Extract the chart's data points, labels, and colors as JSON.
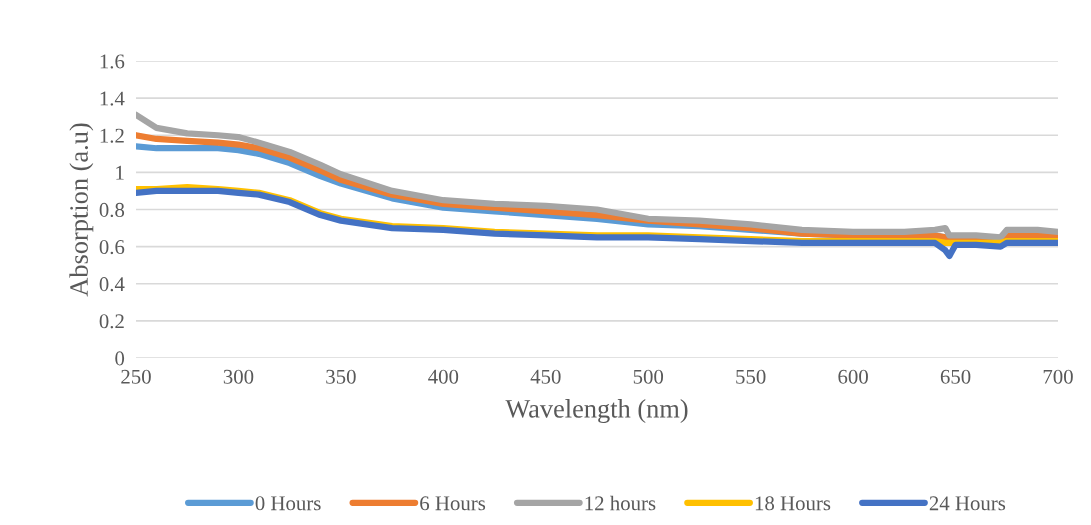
{
  "chart_data": {
    "type": "line",
    "xlabel": "Wavelength (nm)",
    "ylabel": "Absorption (a.u)",
    "x": [
      250,
      260,
      275,
      290,
      300,
      310,
      325,
      340,
      350,
      375,
      400,
      425,
      450,
      475,
      500,
      525,
      550,
      575,
      600,
      625,
      640,
      645,
      647,
      650,
      660,
      672,
      675,
      690,
      700
    ],
    "series": [
      {
        "name": "0 Hours",
        "color": "#5b9bd5",
        "values": [
          1.14,
          1.13,
          1.13,
          1.13,
          1.12,
          1.1,
          1.05,
          0.98,
          0.94,
          0.86,
          0.81,
          0.79,
          0.77,
          0.75,
          0.72,
          0.71,
          0.69,
          0.67,
          0.66,
          0.66,
          0.66,
          0.65,
          0.64,
          0.64,
          0.64,
          0.64,
          0.65,
          0.65,
          0.65
        ]
      },
      {
        "name": "6 Hours",
        "color": "#ed7d31",
        "values": [
          1.2,
          1.18,
          1.17,
          1.16,
          1.15,
          1.13,
          1.08,
          1.01,
          0.96,
          0.88,
          0.83,
          0.81,
          0.79,
          0.77,
          0.74,
          0.72,
          0.7,
          0.67,
          0.66,
          0.66,
          0.66,
          0.65,
          0.64,
          0.64,
          0.64,
          0.64,
          0.66,
          0.66,
          0.66
        ]
      },
      {
        "name": "12 hours",
        "color": "#a5a5a5",
        "values": [
          1.31,
          1.24,
          1.21,
          1.2,
          1.19,
          1.16,
          1.11,
          1.04,
          0.99,
          0.9,
          0.85,
          0.83,
          0.82,
          0.8,
          0.75,
          0.74,
          0.72,
          0.69,
          0.68,
          0.68,
          0.69,
          0.7,
          0.66,
          0.66,
          0.66,
          0.65,
          0.69,
          0.69,
          0.68
        ]
      },
      {
        "name": "18 Hours",
        "color": "#ffc000",
        "values": [
          0.91,
          0.91,
          0.92,
          0.91,
          0.9,
          0.89,
          0.85,
          0.78,
          0.75,
          0.71,
          0.7,
          0.68,
          0.67,
          0.66,
          0.66,
          0.65,
          0.64,
          0.63,
          0.63,
          0.63,
          0.63,
          0.62,
          0.62,
          0.62,
          0.62,
          0.62,
          0.63,
          0.63,
          0.63
        ]
      },
      {
        "name": "24 Hours",
        "color": "#4472c4",
        "values": [
          0.89,
          0.9,
          0.9,
          0.9,
          0.89,
          0.88,
          0.84,
          0.77,
          0.74,
          0.7,
          0.69,
          0.67,
          0.66,
          0.65,
          0.65,
          0.64,
          0.63,
          0.62,
          0.62,
          0.62,
          0.62,
          0.58,
          0.55,
          0.61,
          0.61,
          0.6,
          0.62,
          0.62,
          0.62
        ]
      }
    ],
    "xlim": [
      250,
      700
    ],
    "xticks": [
      250,
      300,
      350,
      400,
      450,
      500,
      550,
      600,
      650,
      700
    ],
    "ylim": [
      0,
      1.6
    ],
    "yticks": [
      0,
      0.2,
      0.4,
      0.6,
      0.8,
      1,
      1.2,
      1.4,
      1.6
    ],
    "grid": "y",
    "legend": "bottom",
    "marker": "none",
    "line_style": "solid"
  }
}
